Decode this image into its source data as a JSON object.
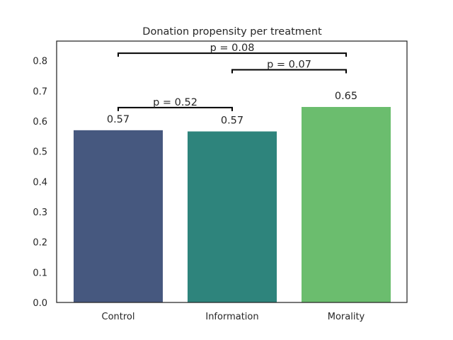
{
  "chart_data": {
    "type": "bar",
    "title": "Donation propensity per treatment",
    "xlabel": "",
    "ylabel": "",
    "categories": [
      "Control",
      "Information",
      "Morality"
    ],
    "values": [
      0.57,
      0.566,
      0.647
    ],
    "value_labels": [
      "0.57",
      "0.57",
      "0.65"
    ],
    "colors": [
      "#46587f",
      "#2e847c",
      "#6bbd6e"
    ],
    "ylim": [
      0,
      0.865
    ],
    "yticks": [
      0.0,
      0.1,
      0.2,
      0.3,
      0.4,
      0.5,
      0.6,
      0.7,
      0.8
    ],
    "ytick_labels": [
      "0.0",
      "0.1",
      "0.2",
      "0.3",
      "0.4",
      "0.5",
      "0.6",
      "0.7",
      "0.8"
    ],
    "grid": false,
    "significance_brackets": [
      {
        "from": "Control",
        "to": "Information",
        "y": 0.645,
        "label": "p = 0.52"
      },
      {
        "from": "Information",
        "to": "Morality",
        "y": 0.77,
        "label": "p = 0.07"
      },
      {
        "from": "Control",
        "to": "Morality",
        "y": 0.825,
        "label": "p = 0.08"
      }
    ]
  }
}
